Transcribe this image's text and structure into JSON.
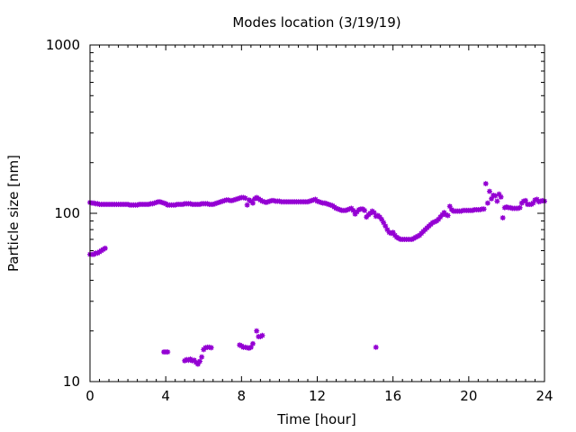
{
  "chart_data": {
    "type": "scatter",
    "title": "Modes location (3/19/19)",
    "xlabel": "Time [hour]",
    "ylabel": "Particle size [nm]",
    "xlim": [
      0,
      24
    ],
    "ylim": [
      10,
      1000
    ],
    "yscale": "log",
    "x_ticks": [
      0,
      4,
      8,
      12,
      16,
      20,
      24
    ],
    "x_tick_labels": [
      "0",
      "4",
      "8",
      "12",
      "16",
      "20",
      "24"
    ],
    "y_ticks": [
      10,
      100,
      1000
    ],
    "y_tick_labels": [
      "10",
      "100",
      "1000"
    ],
    "grid": false,
    "legend": "none",
    "marker_color": "#9400d3",
    "series": [
      {
        "points": [
          [
            0.0,
            116
          ],
          [
            0.1,
            115
          ],
          [
            0.2,
            115
          ],
          [
            0.3,
            114
          ],
          [
            0.4,
            114
          ],
          [
            0.5,
            113
          ],
          [
            0.6,
            113
          ],
          [
            0.7,
            113
          ],
          [
            0.8,
            113
          ],
          [
            0.9,
            113
          ],
          [
            1.0,
            113
          ],
          [
            1.1,
            113
          ],
          [
            1.2,
            113
          ],
          [
            1.3,
            113
          ],
          [
            1.4,
            113
          ],
          [
            1.5,
            113
          ],
          [
            1.6,
            113
          ],
          [
            1.7,
            113
          ],
          [
            1.8,
            113
          ],
          [
            1.9,
            113
          ],
          [
            2.0,
            113
          ],
          [
            2.1,
            112
          ],
          [
            2.2,
            112
          ],
          [
            2.3,
            112
          ],
          [
            2.4,
            112
          ],
          [
            2.5,
            112
          ],
          [
            2.6,
            113
          ],
          [
            2.7,
            113
          ],
          [
            2.8,
            113
          ],
          [
            2.9,
            113
          ],
          [
            3.0,
            113
          ],
          [
            3.1,
            113
          ],
          [
            3.2,
            114
          ],
          [
            3.3,
            114
          ],
          [
            3.4,
            115
          ],
          [
            3.5,
            116
          ],
          [
            3.6,
            117
          ],
          [
            3.7,
            117
          ],
          [
            3.8,
            116
          ],
          [
            3.9,
            115
          ],
          [
            4.0,
            114
          ],
          [
            4.1,
            112
          ],
          [
            4.2,
            112
          ],
          [
            4.3,
            112
          ],
          [
            4.4,
            112
          ],
          [
            4.5,
            112
          ],
          [
            4.6,
            113
          ],
          [
            4.7,
            113
          ],
          [
            4.8,
            113
          ],
          [
            4.9,
            113
          ],
          [
            5.0,
            114
          ],
          [
            5.1,
            114
          ],
          [
            5.2,
            114
          ],
          [
            5.3,
            114
          ],
          [
            5.4,
            113
          ],
          [
            5.5,
            113
          ],
          [
            5.6,
            113
          ],
          [
            5.7,
            113
          ],
          [
            5.8,
            113
          ],
          [
            5.9,
            114
          ],
          [
            6.0,
            114
          ],
          [
            6.1,
            114
          ],
          [
            6.2,
            114
          ],
          [
            6.3,
            113
          ],
          [
            6.4,
            113
          ],
          [
            6.5,
            113
          ],
          [
            6.6,
            114
          ],
          [
            6.7,
            115
          ],
          [
            6.8,
            116
          ],
          [
            6.9,
            117
          ],
          [
            7.0,
            118
          ],
          [
            7.1,
            119
          ],
          [
            7.2,
            120
          ],
          [
            7.3,
            120
          ],
          [
            7.4,
            119
          ],
          [
            7.5,
            119
          ],
          [
            7.6,
            120
          ],
          [
            7.7,
            121
          ],
          [
            7.8,
            122
          ],
          [
            7.9,
            123
          ],
          [
            8.0,
            124
          ],
          [
            8.1,
            124
          ],
          [
            8.2,
            123
          ],
          [
            8.3,
            112
          ],
          [
            8.4,
            120
          ],
          [
            8.5,
            118
          ],
          [
            8.6,
            115
          ],
          [
            8.7,
            122
          ],
          [
            8.8,
            124
          ],
          [
            8.9,
            122
          ],
          [
            9.0,
            120
          ],
          [
            9.1,
            118
          ],
          [
            9.2,
            117
          ],
          [
            9.3,
            116
          ],
          [
            9.4,
            117
          ],
          [
            9.5,
            118
          ],
          [
            9.6,
            119
          ],
          [
            9.7,
            119
          ],
          [
            9.8,
            118
          ],
          [
            9.9,
            118
          ],
          [
            10.0,
            118
          ],
          [
            10.1,
            117
          ],
          [
            10.2,
            117
          ],
          [
            10.3,
            117
          ],
          [
            10.4,
            117
          ],
          [
            10.5,
            117
          ],
          [
            10.6,
            117
          ],
          [
            10.7,
            117
          ],
          [
            10.8,
            117
          ],
          [
            10.9,
            117
          ],
          [
            11.0,
            117
          ],
          [
            11.1,
            117
          ],
          [
            11.2,
            117
          ],
          [
            11.3,
            117
          ],
          [
            11.4,
            117
          ],
          [
            11.5,
            117
          ],
          [
            11.6,
            118
          ],
          [
            11.7,
            119
          ],
          [
            11.8,
            120
          ],
          [
            11.9,
            121
          ],
          [
            12.0,
            118
          ],
          [
            12.1,
            117
          ],
          [
            12.2,
            116
          ],
          [
            12.3,
            115
          ],
          [
            12.4,
            115
          ],
          [
            12.5,
            114
          ],
          [
            12.6,
            113
          ],
          [
            12.7,
            112
          ],
          [
            12.8,
            111
          ],
          [
            12.9,
            109
          ],
          [
            13.0,
            107
          ],
          [
            13.1,
            106
          ],
          [
            13.2,
            105
          ],
          [
            13.3,
            104
          ],
          [
            13.4,
            104
          ],
          [
            13.5,
            104
          ],
          [
            13.6,
            105
          ],
          [
            13.7,
            106
          ],
          [
            13.8,
            107
          ],
          [
            13.9,
            104
          ],
          [
            14.0,
            99
          ],
          [
            14.1,
            102
          ],
          [
            14.2,
            105
          ],
          [
            14.3,
            106
          ],
          [
            14.4,
            106
          ],
          [
            14.5,
            104
          ],
          [
            14.6,
            95
          ],
          [
            14.7,
            98
          ],
          [
            14.8,
            100
          ],
          [
            14.9,
            103
          ],
          [
            15.0,
            101
          ],
          [
            15.1,
            96
          ],
          [
            15.2,
            97
          ],
          [
            15.3,
            95
          ],
          [
            15.4,
            92
          ],
          [
            15.5,
            88
          ],
          [
            15.6,
            84
          ],
          [
            15.7,
            80
          ],
          [
            15.8,
            77
          ],
          [
            15.9,
            76
          ],
          [
            16.0,
            77
          ],
          [
            16.1,
            74
          ],
          [
            16.2,
            72
          ],
          [
            16.3,
            71
          ],
          [
            16.4,
            70
          ],
          [
            16.5,
            70
          ],
          [
            16.6,
            70
          ],
          [
            16.7,
            70
          ],
          [
            16.8,
            70
          ],
          [
            16.9,
            70
          ],
          [
            17.0,
            70
          ],
          [
            17.1,
            71
          ],
          [
            17.2,
            72
          ],
          [
            17.3,
            73
          ],
          [
            17.4,
            74
          ],
          [
            17.5,
            76
          ],
          [
            17.6,
            78
          ],
          [
            17.7,
            80
          ],
          [
            17.8,
            82
          ],
          [
            17.9,
            84
          ],
          [
            18.0,
            86
          ],
          [
            18.1,
            88
          ],
          [
            18.2,
            89
          ],
          [
            18.3,
            90
          ],
          [
            18.4,
            92
          ],
          [
            18.5,
            95
          ],
          [
            18.6,
            98
          ],
          [
            18.7,
            101
          ],
          [
            18.8,
            98
          ],
          [
            18.9,
            97
          ],
          [
            19.0,
            110
          ],
          [
            19.1,
            105
          ],
          [
            19.2,
            103
          ],
          [
            19.3,
            103
          ],
          [
            19.4,
            103
          ],
          [
            19.5,
            103
          ],
          [
            19.6,
            103
          ],
          [
            19.7,
            104
          ],
          [
            19.8,
            104
          ],
          [
            19.9,
            104
          ],
          [
            20.0,
            104
          ],
          [
            20.1,
            104
          ],
          [
            20.2,
            104
          ],
          [
            20.3,
            105
          ],
          [
            20.4,
            105
          ],
          [
            20.5,
            105
          ],
          [
            20.6,
            105
          ],
          [
            20.7,
            106
          ],
          [
            20.8,
            106
          ],
          [
            20.9,
            150
          ],
          [
            21.0,
            115
          ],
          [
            21.1,
            135
          ],
          [
            21.2,
            122
          ],
          [
            21.3,
            128
          ],
          [
            21.4,
            127
          ],
          [
            21.5,
            118
          ],
          [
            21.6,
            130
          ],
          [
            21.7,
            125
          ],
          [
            21.8,
            94
          ],
          [
            21.9,
            108
          ],
          [
            22.0,
            109
          ],
          [
            22.1,
            108
          ],
          [
            22.2,
            108
          ],
          [
            22.3,
            107
          ],
          [
            22.4,
            107
          ],
          [
            22.5,
            107
          ],
          [
            22.6,
            107
          ],
          [
            22.7,
            108
          ],
          [
            22.8,
            115
          ],
          [
            22.9,
            118
          ],
          [
            23.0,
            119
          ],
          [
            23.1,
            113
          ],
          [
            23.2,
            113
          ],
          [
            23.3,
            113
          ],
          [
            23.4,
            115
          ],
          [
            23.5,
            120
          ],
          [
            23.6,
            121
          ],
          [
            23.7,
            117
          ],
          [
            23.8,
            118
          ],
          [
            23.9,
            119
          ],
          [
            24.0,
            118
          ],
          [
            0.0,
            57
          ],
          [
            0.1,
            57
          ],
          [
            0.2,
            57
          ],
          [
            0.3,
            58
          ],
          [
            0.4,
            58
          ],
          [
            0.5,
            59
          ],
          [
            0.6,
            60
          ],
          [
            0.7,
            61
          ],
          [
            0.8,
            62
          ],
          [
            3.9,
            15
          ],
          [
            4.0,
            15
          ],
          [
            4.1,
            15
          ],
          [
            5.0,
            13.3
          ],
          [
            5.1,
            13.5
          ],
          [
            5.2,
            13.4
          ],
          [
            5.3,
            13.6
          ],
          [
            5.4,
            13.3
          ],
          [
            5.5,
            13.4
          ],
          [
            5.6,
            13.0
          ],
          [
            5.7,
            12.7
          ],
          [
            5.8,
            13.2
          ],
          [
            5.9,
            14.0
          ],
          [
            6.0,
            15.5
          ],
          [
            6.1,
            15.9
          ],
          [
            6.2,
            16.0
          ],
          [
            6.3,
            16.0
          ],
          [
            6.4,
            15.9
          ],
          [
            7.9,
            16.5
          ],
          [
            8.0,
            16.3
          ],
          [
            8.1,
            16.0
          ],
          [
            8.2,
            16.0
          ],
          [
            8.3,
            15.9
          ],
          [
            8.4,
            15.8
          ],
          [
            8.5,
            16.0
          ],
          [
            8.6,
            16.8
          ],
          [
            8.8,
            20.0
          ],
          [
            8.9,
            18.5
          ],
          [
            9.0,
            18.5
          ],
          [
            9.1,
            18.8
          ],
          [
            15.1,
            16.0
          ]
        ]
      }
    ]
  }
}
